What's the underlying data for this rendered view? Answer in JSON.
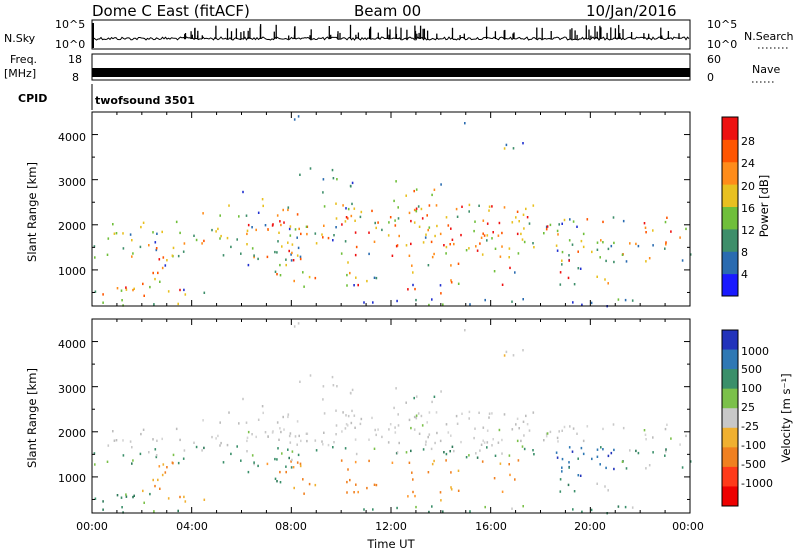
{
  "header": {
    "title": "Dome C East (fitACF)",
    "beam": "Beam 00",
    "date": "10/Jan/2016"
  },
  "strips": {
    "nsky_label": "N.Sky",
    "nsky_ticks": [
      "10^5",
      "10^0"
    ],
    "nsearch_label": "N.Search",
    "nsearch_ticks": [
      "10^5",
      "10^0"
    ],
    "freq_label_1": "Freq.",
    "freq_label_2": "[MHz]",
    "freq_ticks": [
      "18",
      "8"
    ],
    "nave_label": "Nave",
    "nave_ticks": [
      "60",
      "0"
    ],
    "cpid_label": "CPID",
    "cpid_value": "twofsound 3501"
  },
  "chart_data": [
    {
      "type": "heatmap",
      "panel": "power",
      "xlabel": "",
      "ylabel": "Slant Range [km]",
      "xlim": [
        0,
        24
      ],
      "ylim": [
        200,
        4500
      ],
      "yticks": [
        "1000",
        "2000",
        "3000",
        "4000"
      ],
      "colorbar": {
        "label": "Power [dB]",
        "ticks": [
          "4",
          "8",
          "12",
          "16",
          "20",
          "24",
          "28"
        ],
        "colors": [
          "#1a1aff",
          "#2a6bb0",
          "#3e8e6a",
          "#6fbf3a",
          "#e8c020",
          "#ff8c1a",
          "#ff5500",
          "#ee1111"
        ]
      }
    },
    {
      "type": "heatmap",
      "panel": "velocity",
      "xlabel": "Time UT",
      "ylabel": "Slant Range [km]",
      "xlim": [
        0,
        24
      ],
      "ylim": [
        200,
        4500
      ],
      "xticks": [
        "00:00",
        "04:00",
        "08:00",
        "12:00",
        "16:00",
        "20:00",
        "00:00"
      ],
      "yticks": [
        "1000",
        "2000",
        "3000",
        "4000"
      ],
      "colorbar": {
        "label": "Velocity [m s⁻¹]",
        "ticks": [
          "1000",
          "500",
          "100",
          "25",
          "-25",
          "-100",
          "-500",
          "-1000"
        ],
        "colors": [
          "#2233bb",
          "#2f78b4",
          "#3a8f6a",
          "#7bc04a",
          "#c8c8c8",
          "#f0b030",
          "#f08020",
          "#ff3a1a",
          "#ee0000"
        ]
      }
    }
  ]
}
